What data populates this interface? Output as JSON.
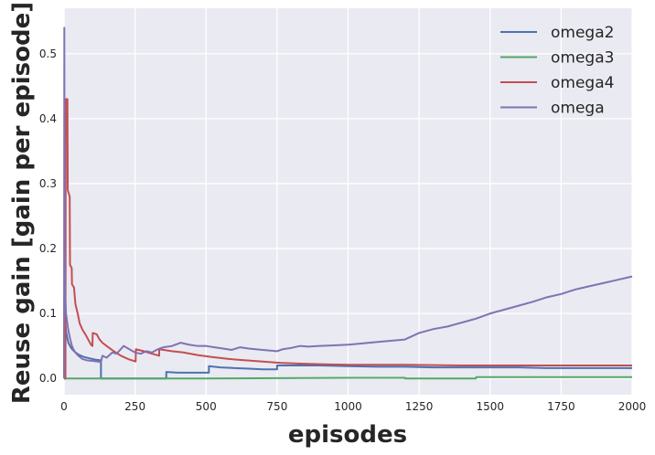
{
  "chart_data": {
    "type": "line",
    "title": "",
    "xlabel": "episodes",
    "ylabel": "Reuse gain [gain per episode]",
    "xlim": [
      0,
      2000
    ],
    "ylim": [
      -0.025,
      0.57
    ],
    "xticks": [
      0,
      250,
      500,
      750,
      1000,
      1250,
      1500,
      1750,
      2000
    ],
    "yticks": [
      0.0,
      0.1,
      0.2,
      0.3,
      0.4,
      0.5
    ],
    "xtick_labels": [
      "0",
      "250",
      "500",
      "750",
      "1000",
      "1250",
      "1500",
      "1750",
      "2000"
    ],
    "ytick_labels": [
      "0.0",
      "0.1",
      "0.2",
      "0.3",
      "0.4",
      "0.5"
    ],
    "grid": true,
    "legend_position": "top-right",
    "series": [
      {
        "name": "omega2",
        "color": "#4c72b0",
        "points": [
          [
            0,
            0.0
          ],
          [
            3,
            0.0
          ],
          [
            3,
            0.09
          ],
          [
            8,
            0.07
          ],
          [
            15,
            0.055
          ],
          [
            25,
            0.047
          ],
          [
            35,
            0.042
          ],
          [
            50,
            0.037
          ],
          [
            70,
            0.033
          ],
          [
            90,
            0.031
          ],
          [
            110,
            0.029
          ],
          [
            130,
            0.028
          ],
          [
            130,
            0.0
          ],
          [
            360,
            0.0
          ],
          [
            360,
            0.01
          ],
          [
            400,
            0.009
          ],
          [
            450,
            0.009
          ],
          [
            510,
            0.009
          ],
          [
            510,
            0.019
          ],
          [
            550,
            0.017
          ],
          [
            600,
            0.016
          ],
          [
            650,
            0.015
          ],
          [
            700,
            0.014
          ],
          [
            750,
            0.014
          ],
          [
            750,
            0.02
          ],
          [
            800,
            0.02
          ],
          [
            840,
            0.02
          ],
          [
            900,
            0.02
          ],
          [
            1000,
            0.019
          ],
          [
            1100,
            0.018
          ],
          [
            1200,
            0.018
          ],
          [
            1300,
            0.017
          ],
          [
            1400,
            0.017
          ],
          [
            1500,
            0.017
          ],
          [
            1600,
            0.017
          ],
          [
            1700,
            0.016
          ],
          [
            1800,
            0.016
          ],
          [
            1900,
            0.016
          ],
          [
            2000,
            0.016
          ]
        ]
      },
      {
        "name": "omega3",
        "color": "#55a868",
        "points": [
          [
            0,
            0.0
          ],
          [
            500,
            0.0
          ],
          [
            1000,
            0.001
          ],
          [
            1200,
            0.001
          ],
          [
            1201,
            0.0
          ],
          [
            1450,
            0.0
          ],
          [
            1451,
            0.002
          ],
          [
            1750,
            0.002
          ],
          [
            2000,
            0.002
          ]
        ]
      },
      {
        "name": "omega4",
        "color": "#c44e52",
        "points": [
          [
            0,
            0.0
          ],
          [
            5,
            0.0
          ],
          [
            6,
            0.43
          ],
          [
            12,
            0.43
          ],
          [
            13,
            0.29
          ],
          [
            20,
            0.28
          ],
          [
            21,
            0.175
          ],
          [
            27,
            0.17
          ],
          [
            28,
            0.145
          ],
          [
            35,
            0.14
          ],
          [
            40,
            0.115
          ],
          [
            48,
            0.1
          ],
          [
            55,
            0.085
          ],
          [
            65,
            0.075
          ],
          [
            75,
            0.068
          ],
          [
            85,
            0.06
          ],
          [
            95,
            0.052
          ],
          [
            100,
            0.05
          ],
          [
            101,
            0.07
          ],
          [
            115,
            0.068
          ],
          [
            125,
            0.06
          ],
          [
            135,
            0.055
          ],
          [
            150,
            0.05
          ],
          [
            175,
            0.042
          ],
          [
            200,
            0.035
          ],
          [
            225,
            0.03
          ],
          [
            252,
            0.026
          ],
          [
            253,
            0.045
          ],
          [
            280,
            0.042
          ],
          [
            310,
            0.038
          ],
          [
            335,
            0.035
          ],
          [
            335,
            0.045
          ],
          [
            380,
            0.042
          ],
          [
            420,
            0.04
          ],
          [
            470,
            0.036
          ],
          [
            520,
            0.033
          ],
          [
            580,
            0.03
          ],
          [
            640,
            0.028
          ],
          [
            700,
            0.026
          ],
          [
            760,
            0.024
          ],
          [
            820,
            0.023
          ],
          [
            900,
            0.022
          ],
          [
            1000,
            0.021
          ],
          [
            1200,
            0.021
          ],
          [
            1400,
            0.02
          ],
          [
            1600,
            0.02
          ],
          [
            1800,
            0.02
          ],
          [
            2000,
            0.02
          ]
        ]
      },
      {
        "name": "omega",
        "color": "#8172b2",
        "points": [
          [
            0,
            0.0
          ],
          [
            1,
            0.54
          ],
          [
            2,
            0.2
          ],
          [
            4,
            0.13
          ],
          [
            7,
            0.1
          ],
          [
            10,
            0.09
          ],
          [
            13,
            0.08
          ],
          [
            17,
            0.07
          ],
          [
            22,
            0.06
          ],
          [
            28,
            0.05
          ],
          [
            33,
            0.045
          ],
          [
            40,
            0.04
          ],
          [
            50,
            0.035
          ],
          [
            65,
            0.03
          ],
          [
            80,
            0.028
          ],
          [
            100,
            0.027
          ],
          [
            120,
            0.026
          ],
          [
            130,
            0.025
          ],
          [
            135,
            0.035
          ],
          [
            150,
            0.032
          ],
          [
            170,
            0.04
          ],
          [
            185,
            0.038
          ],
          [
            210,
            0.05
          ],
          [
            230,
            0.045
          ],
          [
            250,
            0.04
          ],
          [
            270,
            0.038
          ],
          [
            290,
            0.042
          ],
          [
            310,
            0.04
          ],
          [
            330,
            0.045
          ],
          [
            350,
            0.048
          ],
          [
            380,
            0.05
          ],
          [
            410,
            0.055
          ],
          [
            440,
            0.052
          ],
          [
            470,
            0.05
          ],
          [
            500,
            0.05
          ],
          [
            530,
            0.048
          ],
          [
            560,
            0.046
          ],
          [
            590,
            0.044
          ],
          [
            620,
            0.048
          ],
          [
            650,
            0.046
          ],
          [
            700,
            0.044
          ],
          [
            750,
            0.042
          ],
          [
            770,
            0.045
          ],
          [
            800,
            0.047
          ],
          [
            830,
            0.05
          ],
          [
            860,
            0.049
          ],
          [
            900,
            0.05
          ],
          [
            950,
            0.051
          ],
          [
            1000,
            0.052
          ],
          [
            1050,
            0.054
          ],
          [
            1100,
            0.056
          ],
          [
            1150,
            0.058
          ],
          [
            1200,
            0.06
          ],
          [
            1250,
            0.07
          ],
          [
            1300,
            0.076
          ],
          [
            1350,
            0.08
          ],
          [
            1400,
            0.086
          ],
          [
            1450,
            0.092
          ],
          [
            1500,
            0.1
          ],
          [
            1550,
            0.106
          ],
          [
            1600,
            0.112
          ],
          [
            1650,
            0.118
          ],
          [
            1700,
            0.125
          ],
          [
            1750,
            0.13
          ],
          [
            1800,
            0.137
          ],
          [
            1850,
            0.142
          ],
          [
            1900,
            0.147
          ],
          [
            1950,
            0.152
          ],
          [
            2000,
            0.157
          ]
        ]
      }
    ]
  }
}
